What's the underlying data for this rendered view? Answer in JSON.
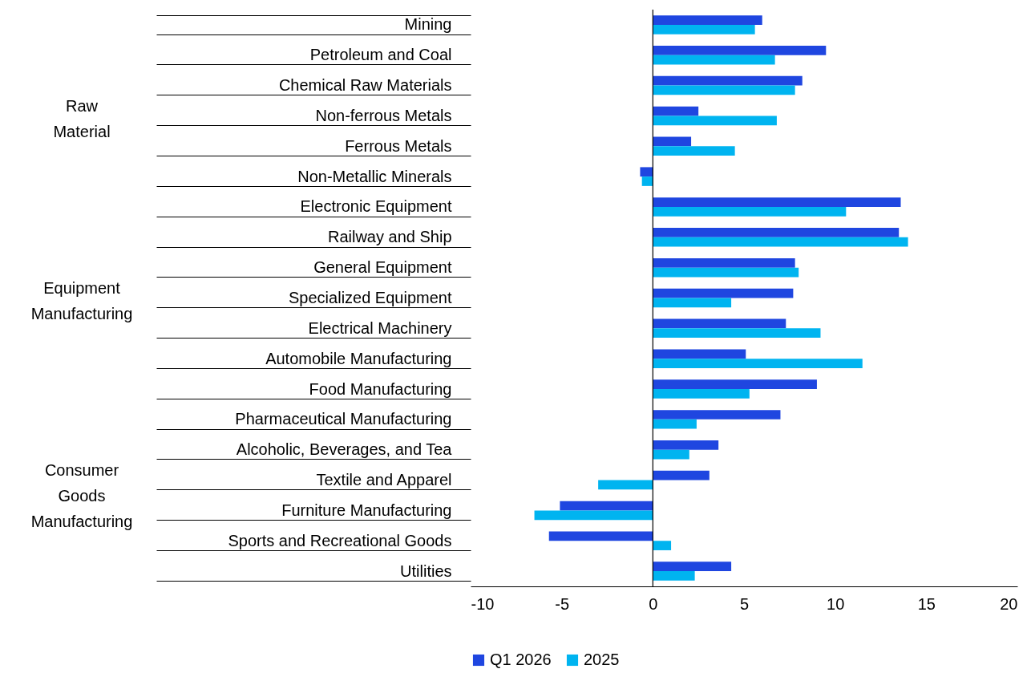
{
  "chart_data": {
    "type": "bar",
    "orientation": "horizontal",
    "categories": [
      "Mining",
      "Petroleum and Coal",
      "Chemical Raw Materials",
      "Non-ferrous Metals",
      "Ferrous Metals",
      "Non-Metallic Minerals",
      "Electronic Equipment",
      "Railway and Ship",
      "General Equipment",
      "Specialized Equipment",
      "Electrical Machinery",
      "Automobile Manufacturing",
      "Food Manufacturing",
      "Pharmaceutical Manufacturing",
      "Alcoholic, Beverages, and Tea",
      "Textile and Apparel",
      "Furniture Manufacturing",
      "Sports and Recreational Goods",
      "Utilities"
    ],
    "series": [
      {
        "name": "Q1 2026",
        "color": "#1f46e0",
        "values": [
          6.0,
          9.5,
          8.2,
          2.5,
          2.1,
          -0.7,
          13.6,
          13.5,
          7.8,
          7.7,
          7.3,
          5.1,
          9.0,
          7.0,
          3.6,
          3.1,
          -5.1,
          -5.7,
          4.3
        ]
      },
      {
        "name": "2025",
        "color": "#00b4f0",
        "values": [
          5.6,
          6.7,
          7.8,
          6.8,
          4.5,
          -0.6,
          10.6,
          14.0,
          8.0,
          4.3,
          9.2,
          11.5,
          5.3,
          2.4,
          2.0,
          -3.0,
          -6.5,
          1.0,
          2.3
        ]
      }
    ],
    "xlim": [
      -10,
      20
    ],
    "xticks": [
      -10,
      -5,
      0,
      5,
      10,
      15,
      20
    ],
    "ref_lines": [
      {
        "axis": "x",
        "value": 0
      }
    ],
    "annotations": [
      "Raw\nMaterial",
      "Equipment\nManufacturing",
      "Consumer\nGoods\nManufacturing"
    ],
    "grid": false,
    "legend": "bottom"
  }
}
